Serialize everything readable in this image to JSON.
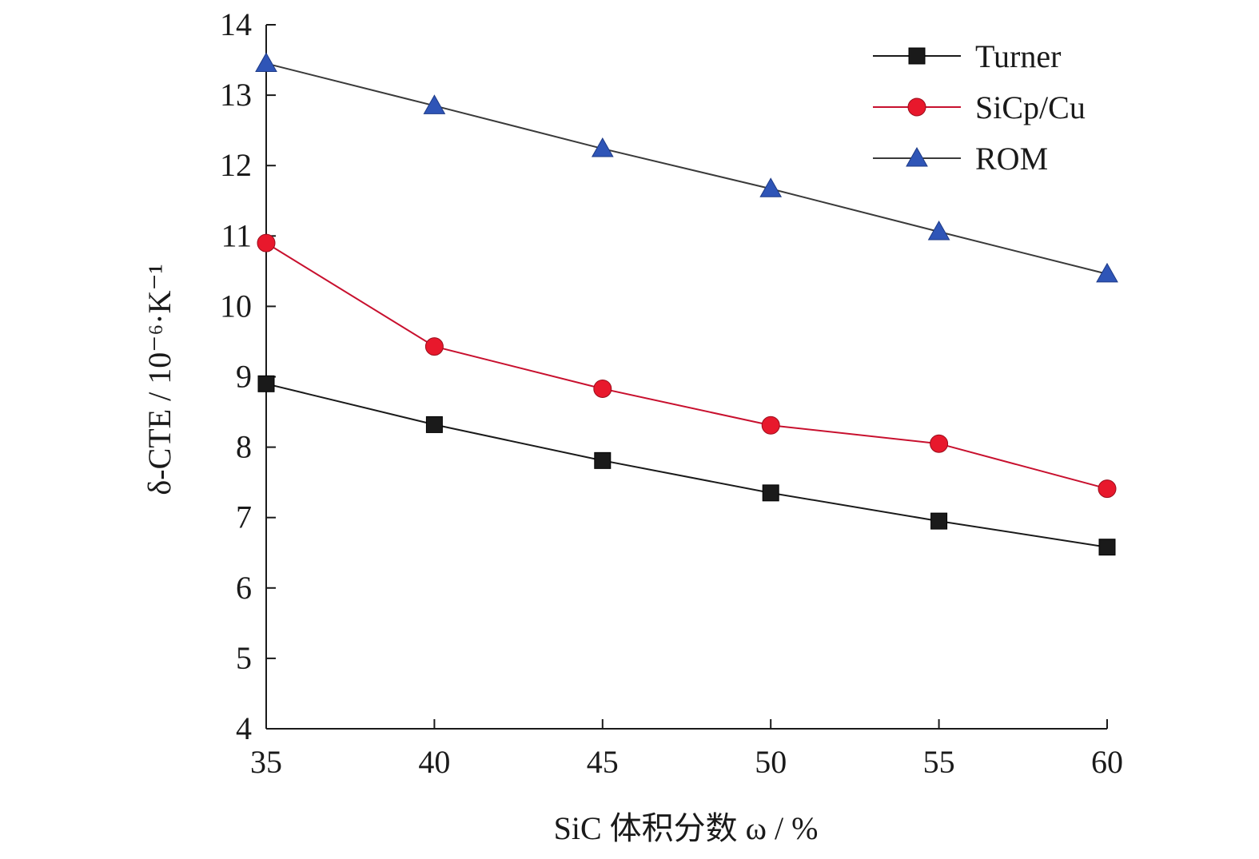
{
  "chart_data": {
    "type": "line",
    "title": "",
    "xlabel": "SiC 体积分数 ω / %",
    "ylabel": "δ-CTE / 10⁻⁶·K⁻¹",
    "x": [
      35,
      40,
      45,
      50,
      55,
      60
    ],
    "xlim": [
      35,
      60
    ],
    "ylim": [
      4,
      14
    ],
    "x_ticks": [
      "35",
      "40",
      "45",
      "50",
      "55",
      "60"
    ],
    "y_ticks": [
      "4",
      "5",
      "6",
      "7",
      "8",
      "9",
      "10",
      "11",
      "12",
      "13",
      "14"
    ],
    "grid": false,
    "legend_position": "top-right",
    "series": [
      {
        "name": "Turner",
        "values": [
          8.9,
          8.32,
          7.81,
          7.35,
          6.95,
          6.58
        ],
        "color": "#1a1a1a",
        "marker": "square",
        "line_color": "#1a1a1a"
      },
      {
        "name": "SiCp/Cu",
        "values": [
          10.9,
          9.43,
          8.83,
          8.31,
          8.05,
          7.41
        ],
        "color": "#e8182c",
        "marker": "circle",
        "line_color": "#c8102e"
      },
      {
        "name": "ROM",
        "values": [
          13.45,
          12.85,
          12.24,
          11.67,
          11.06,
          10.46
        ],
        "color": "#2f55b7",
        "marker": "triangle",
        "line_color": "#3a3a3a"
      }
    ]
  }
}
